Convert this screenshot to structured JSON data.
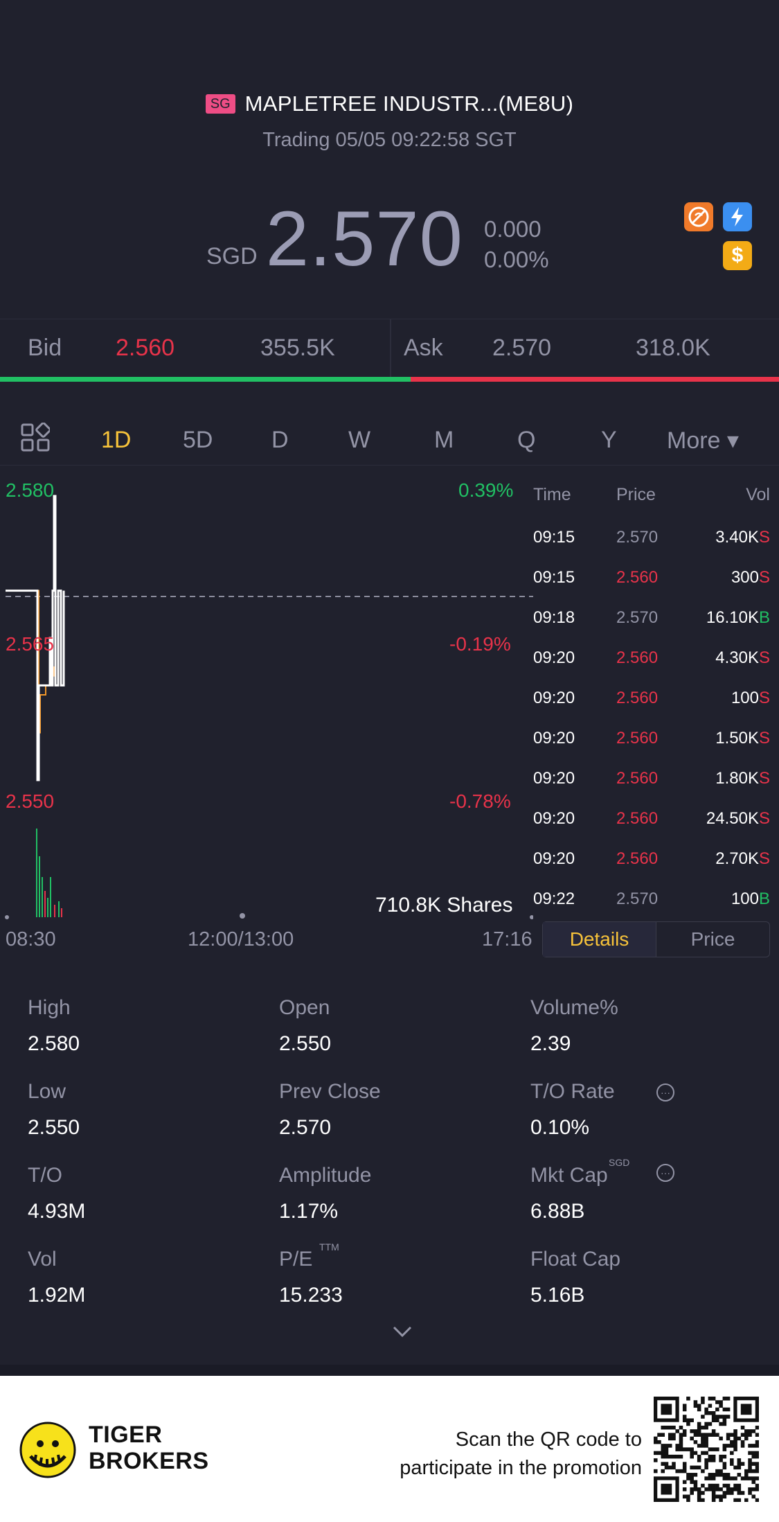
{
  "header": {
    "market_badge": "SG",
    "title": "MAPLETREE INDUSTR...(ME8U)",
    "status": "Trading 05/05 09:22:58 SGT"
  },
  "quote": {
    "currency": "SGD",
    "price": "2.570",
    "change": "0.000",
    "change_pct": "0.00%",
    "icons": [
      "no-short-icon",
      "flash-icon",
      "dollar-icon"
    ],
    "icon_dollar_glyph": "$"
  },
  "bid_ask": {
    "bid_label": "Bid",
    "bid_price": "2.560",
    "bid_size": "355.5K",
    "ask_label": "Ask",
    "ask_price": "2.570",
    "ask_size": "318.0K",
    "bid_ratio": 0.527
  },
  "tabs": [
    "1D",
    "5D",
    "D",
    "W",
    "M",
    "Q",
    "Y",
    "More ▾"
  ],
  "active_tab": "1D",
  "chart": {
    "price_high": "2.580",
    "price_mid": "2.565",
    "price_low": "2.550",
    "pct_high": "0.39%",
    "pct_mid": "-0.19%",
    "pct_low": "-0.78%",
    "volume_label": "710.8K Shares",
    "time_start": "08:30",
    "time_mid": "12:00/13:00",
    "time_end": "17:16"
  },
  "chart_data": {
    "type": "line",
    "ylim": [
      2.55,
      2.58
    ],
    "prev_close": 2.57,
    "series": [
      {
        "values": [
          2.57,
          2.57,
          2.57,
          2.55,
          2.56,
          2.56,
          2.56,
          2.565,
          2.56,
          2.57,
          2.58,
          2.56,
          2.57,
          2.56,
          2.57
        ]
      },
      {
        "values": [
          2.57,
          2.57,
          2.57,
          2.555,
          2.559,
          2.559,
          2.56,
          2.56,
          2.561,
          2.562
        ]
      }
    ]
  },
  "trades": {
    "headers": [
      "Time",
      "Price",
      "Vol"
    ],
    "rows": [
      {
        "time": "09:15",
        "price": "2.570",
        "vol": "3.40K",
        "side": "S",
        "price_color": "#9394a6"
      },
      {
        "time": "09:15",
        "price": "2.560",
        "vol": "300",
        "side": "S",
        "price_color": "#e8334a"
      },
      {
        "time": "09:18",
        "price": "2.570",
        "vol": "16.10K",
        "side": "B",
        "price_color": "#9394a6"
      },
      {
        "time": "09:20",
        "price": "2.560",
        "vol": "4.30K",
        "side": "S",
        "price_color": "#e8334a"
      },
      {
        "time": "09:20",
        "price": "2.560",
        "vol": "100",
        "side": "S",
        "price_color": "#e8334a"
      },
      {
        "time": "09:20",
        "price": "2.560",
        "vol": "1.50K",
        "side": "S",
        "price_color": "#e8334a"
      },
      {
        "time": "09:20",
        "price": "2.560",
        "vol": "1.80K",
        "side": "S",
        "price_color": "#e8334a"
      },
      {
        "time": "09:20",
        "price": "2.560",
        "vol": "24.50K",
        "side": "S",
        "price_color": "#e8334a"
      },
      {
        "time": "09:20",
        "price": "2.560",
        "vol": "2.70K",
        "side": "S",
        "price_color": "#e8334a"
      },
      {
        "time": "09:22",
        "price": "2.570",
        "vol": "100",
        "side": "B",
        "price_color": "#9394a6"
      }
    ],
    "details_label": "Details",
    "price_label": "Price"
  },
  "stats": {
    "high_label": "High",
    "high": "2.580",
    "open_label": "Open",
    "open": "2.550",
    "volpct_label": "Volume%",
    "volpct": "2.39",
    "low_label": "Low",
    "low": "2.550",
    "prevclose_label": "Prev Close",
    "prevclose": "2.570",
    "torate_label": "T/O Rate",
    "torate": "0.10%",
    "to_label": "T/O",
    "to": "4.93M",
    "amplitude_label": "Amplitude",
    "amplitude": "1.17%",
    "mktcap_label": "Mkt Cap",
    "mktcap_sup": "SGD",
    "mktcap": "6.88B",
    "vol_label": "Vol",
    "vol": "1.92M",
    "pe_label": "P/E",
    "pe_sup": "TTM",
    "pe": "15.233",
    "floatcap_label": "Float Cap",
    "floatcap": "5.16B"
  },
  "promo": {
    "brand_line1": "TIGER",
    "brand_line2": "BROKERS",
    "scan_line1": "Scan the QR code to",
    "scan_line2": "participate in the promotion"
  }
}
